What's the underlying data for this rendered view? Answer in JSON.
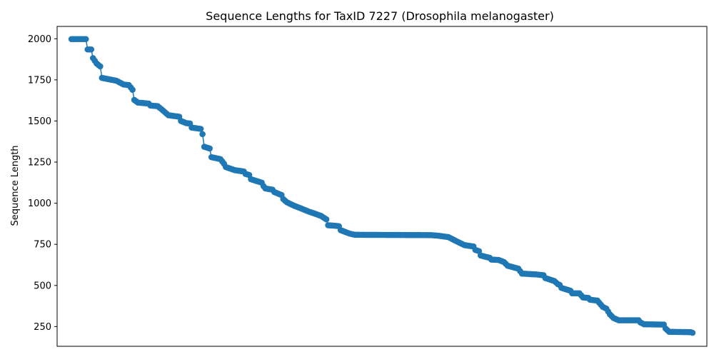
{
  "chart_data": {
    "type": "line",
    "title": "Sequence Lengths for TaxID 7227 (Drosophila melanogaster)",
    "xlabel": "",
    "ylabel": "Sequence Length",
    "ylim": [
      130,
      2075
    ],
    "xlim": [
      -8,
      354
    ],
    "yticks": [
      250,
      500,
      750,
      1000,
      1250,
      1500,
      1750,
      2000
    ],
    "x_tick_labels_shown": false,
    "grid": false,
    "marker": "circle",
    "series_color": "#1f77b4",
    "anchors": [
      [
        0,
        1998
      ],
      [
        8,
        1998
      ],
      [
        9,
        1935
      ],
      [
        11,
        1935
      ],
      [
        12,
        1882
      ],
      [
        14,
        1850
      ],
      [
        16,
        1832
      ],
      [
        17,
        1762
      ],
      [
        25,
        1745
      ],
      [
        29,
        1722
      ],
      [
        32,
        1718
      ],
      [
        34,
        1690
      ],
      [
        35,
        1628
      ],
      [
        37,
        1612
      ],
      [
        43,
        1606
      ],
      [
        44,
        1594
      ],
      [
        48,
        1590
      ],
      [
        50,
        1573
      ],
      [
        52,
        1554
      ],
      [
        54,
        1535
      ],
      [
        60,
        1526
      ],
      [
        61,
        1500
      ],
      [
        64,
        1487
      ],
      [
        66,
        1485
      ],
      [
        67,
        1460
      ],
      [
        72,
        1452
      ],
      [
        73,
        1420
      ],
      [
        74,
        1343
      ],
      [
        77,
        1333
      ],
      [
        78,
        1280
      ],
      [
        83,
        1268
      ],
      [
        85,
        1240
      ],
      [
        86,
        1220
      ],
      [
        91,
        1201
      ],
      [
        96,
        1193
      ],
      [
        97,
        1178
      ],
      [
        99,
        1172
      ],
      [
        100,
        1146
      ],
      [
        106,
        1125
      ],
      [
        107,
        1104
      ],
      [
        108,
        1090
      ],
      [
        112,
        1082
      ],
      [
        113,
        1068
      ],
      [
        117,
        1050
      ],
      [
        118,
        1025
      ],
      [
        120,
        1006
      ],
      [
        124,
        985
      ],
      [
        128,
        968
      ],
      [
        132,
        950
      ],
      [
        136,
        935
      ],
      [
        139,
        923
      ],
      [
        142,
        902
      ],
      [
        143,
        866
      ],
      [
        147,
        863
      ],
      [
        149,
        860
      ],
      [
        150,
        836
      ],
      [
        155,
        815
      ],
      [
        158,
        808
      ],
      [
        200,
        806
      ],
      [
        204,
        803
      ],
      [
        210,
        794
      ],
      [
        215,
        766
      ],
      [
        219,
        745
      ],
      [
        224,
        737
      ],
      [
        225,
        716
      ],
      [
        227,
        709
      ],
      [
        228,
        682
      ],
      [
        233,
        668
      ],
      [
        234,
        657
      ],
      [
        238,
        655
      ],
      [
        241,
        642
      ],
      [
        243,
        620
      ],
      [
        249,
        602
      ],
      [
        251,
        572
      ],
      [
        259,
        567
      ],
      [
        263,
        562
      ],
      [
        264,
        545
      ],
      [
        269,
        527
      ],
      [
        271,
        508
      ],
      [
        272,
        503
      ],
      [
        273,
        485
      ],
      [
        278,
        468
      ],
      [
        279,
        452
      ],
      [
        283,
        452
      ],
      [
        285,
        427
      ],
      [
        288,
        424
      ],
      [
        289,
        413
      ],
      [
        293,
        408
      ],
      [
        294,
        395
      ],
      [
        296,
        370
      ],
      [
        298,
        359
      ],
      [
        300,
        324
      ],
      [
        302,
        302
      ],
      [
        305,
        288
      ],
      [
        316,
        288
      ],
      [
        317,
        275
      ],
      [
        319,
        264
      ],
      [
        330,
        262
      ],
      [
        331,
        238
      ],
      [
        333,
        218
      ],
      [
        345,
        216
      ],
      [
        346,
        212
      ]
    ]
  }
}
